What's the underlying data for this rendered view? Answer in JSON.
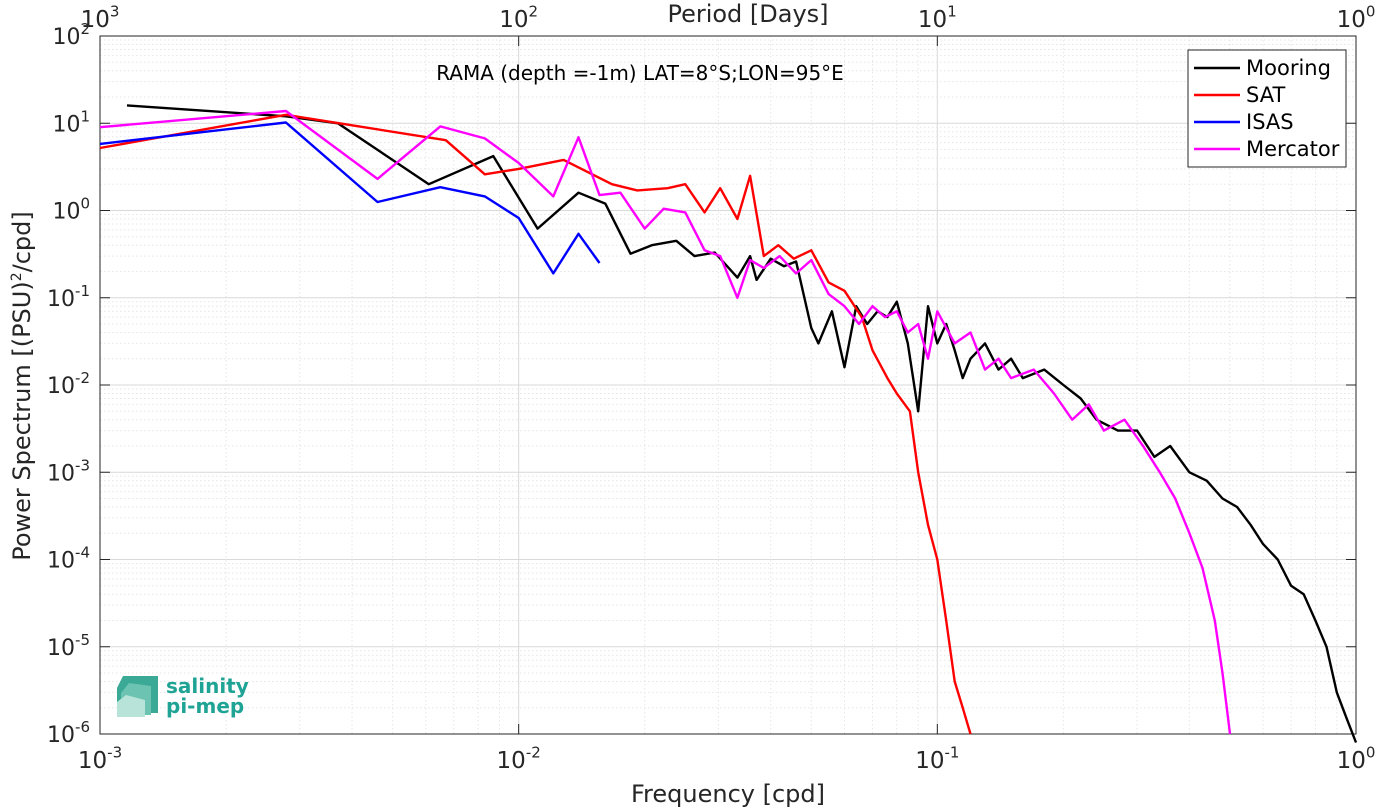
{
  "chart_data": {
    "type": "line",
    "xscale": "log",
    "yscale": "log",
    "xlim": [
      0.001,
      1
    ],
    "ylim": [
      1e-06,
      100
    ],
    "grid": true,
    "legend_position": "top-right",
    "xlabel": "Frequency [cpd]",
    "ylabel": "Power Spectrum [(PSU)²/cpd]",
    "top_axis_label": "Period [Days]",
    "annotation": "RAMA (depth =-1m) LAT=8°S;LON=95°E",
    "logo": [
      "salinity",
      "pi-mep"
    ],
    "x_ticks": [
      {
        "value": 0.001,
        "base": "10",
        "exp": "-3"
      },
      {
        "value": 0.01,
        "base": "10",
        "exp": "-2"
      },
      {
        "value": 0.1,
        "base": "10",
        "exp": "-1"
      },
      {
        "value": 1,
        "base": "10",
        "exp": "0"
      }
    ],
    "top_ticks": [
      {
        "value": 0.001,
        "base": "10",
        "exp": "3"
      },
      {
        "value": 0.01,
        "base": "10",
        "exp": "2"
      },
      {
        "value": 0.1,
        "base": "10",
        "exp": "1"
      },
      {
        "value": 1,
        "base": "10",
        "exp": "0"
      }
    ],
    "y_ticks": [
      {
        "value": 1e-06,
        "base": "10",
        "exp": "-6"
      },
      {
        "value": 1e-05,
        "base": "10",
        "exp": "-5"
      },
      {
        "value": 0.0001,
        "base": "10",
        "exp": "-4"
      },
      {
        "value": 0.001,
        "base": "10",
        "exp": "-3"
      },
      {
        "value": 0.01,
        "base": "10",
        "exp": "-2"
      },
      {
        "value": 0.1,
        "base": "10",
        "exp": "-1"
      },
      {
        "value": 1,
        "base": "10",
        "exp": "0"
      },
      {
        "value": 10,
        "base": "10",
        "exp": "1"
      },
      {
        "value": 100,
        "base": "10",
        "exp": "2"
      }
    ],
    "series": [
      {
        "name": "Mooring",
        "color": "#000000",
        "x": [
          0.00116,
          0.00278,
          0.0037,
          0.0061,
          0.0087,
          0.0111,
          0.0139,
          0.0161,
          0.0185,
          0.0208,
          0.0238,
          0.0263,
          0.0294,
          0.0333,
          0.0357,
          0.037,
          0.04,
          0.043,
          0.046,
          0.05,
          0.052,
          0.056,
          0.06,
          0.064,
          0.068,
          0.072,
          0.076,
          0.08,
          0.085,
          0.09,
          0.095,
          0.1,
          0.105,
          0.11,
          0.115,
          0.12,
          0.13,
          0.14,
          0.15,
          0.16,
          0.18,
          0.2,
          0.22,
          0.24,
          0.27,
          0.3,
          0.33,
          0.36,
          0.4,
          0.44,
          0.48,
          0.52,
          0.56,
          0.6,
          0.65,
          0.7,
          0.75,
          0.8,
          0.85,
          0.9,
          0.95,
          1.0
        ],
        "y": [
          16,
          12,
          10,
          2.0,
          4.2,
          0.62,
          1.6,
          1.2,
          0.32,
          0.4,
          0.45,
          0.3,
          0.33,
          0.17,
          0.3,
          0.16,
          0.28,
          0.23,
          0.26,
          0.045,
          0.03,
          0.07,
          0.016,
          0.08,
          0.05,
          0.07,
          0.06,
          0.09,
          0.03,
          0.005,
          0.08,
          0.03,
          0.05,
          0.025,
          0.012,
          0.02,
          0.03,
          0.015,
          0.02,
          0.012,
          0.015,
          0.01,
          0.007,
          0.004,
          0.003,
          0.003,
          0.0015,
          0.002,
          0.001,
          0.0008,
          0.0005,
          0.0004,
          0.00025,
          0.00015,
          0.0001,
          5e-05,
          4e-05,
          2e-05,
          1e-05,
          3e-06,
          1.5e-06,
          8e-07
        ]
      },
      {
        "name": "SAT",
        "color": "#ff0000",
        "x": [
          0.001,
          0.00278,
          0.0067,
          0.0083,
          0.01,
          0.0128,
          0.0167,
          0.0192,
          0.0227,
          0.025,
          0.0278,
          0.0303,
          0.0333,
          0.0357,
          0.0385,
          0.0417,
          0.0454,
          0.05,
          0.055,
          0.06,
          0.066,
          0.07,
          0.076,
          0.08,
          0.086,
          0.09,
          0.095,
          0.1,
          0.105,
          0.11,
          0.115,
          0.12
        ],
        "y": [
          5.2,
          12.5,
          6.4,
          2.6,
          3.0,
          3.8,
          2.0,
          1.7,
          1.8,
          2.0,
          0.95,
          1.8,
          0.8,
          2.5,
          0.3,
          0.4,
          0.28,
          0.35,
          0.15,
          0.12,
          0.06,
          0.025,
          0.012,
          0.008,
          0.005,
          0.001,
          0.00025,
          0.0001,
          2e-05,
          4e-06,
          2e-06,
          1e-06
        ]
      },
      {
        "name": "ISAS",
        "color": "#0000ff",
        "x": [
          0.001,
          0.00278,
          0.0046,
          0.0065,
          0.0083,
          0.01,
          0.0121,
          0.0139,
          0.0156
        ],
        "y": [
          5.8,
          10.2,
          1.25,
          1.85,
          1.45,
          0.82,
          0.19,
          0.54,
          0.25
        ]
      },
      {
        "name": "Mercator",
        "color": "#ff00ff",
        "x": [
          0.001,
          0.00278,
          0.0046,
          0.0065,
          0.0083,
          0.01,
          0.0121,
          0.0139,
          0.0156,
          0.0175,
          0.02,
          0.0222,
          0.025,
          0.0278,
          0.0303,
          0.0333,
          0.0357,
          0.0385,
          0.042,
          0.046,
          0.05,
          0.055,
          0.06,
          0.065,
          0.07,
          0.075,
          0.08,
          0.085,
          0.09,
          0.095,
          0.1,
          0.11,
          0.12,
          0.13,
          0.14,
          0.15,
          0.17,
          0.19,
          0.21,
          0.23,
          0.25,
          0.28,
          0.31,
          0.34,
          0.37,
          0.4,
          0.43,
          0.46,
          0.48,
          0.5
        ],
        "y": [
          9,
          13.8,
          2.3,
          9.2,
          6.7,
          3.5,
          1.45,
          6.9,
          1.5,
          1.6,
          0.62,
          1.05,
          0.95,
          0.35,
          0.3,
          0.1,
          0.27,
          0.22,
          0.3,
          0.19,
          0.27,
          0.11,
          0.08,
          0.05,
          0.08,
          0.06,
          0.07,
          0.04,
          0.05,
          0.02,
          0.07,
          0.03,
          0.04,
          0.015,
          0.02,
          0.012,
          0.015,
          0.008,
          0.004,
          0.006,
          0.003,
          0.004,
          0.002,
          0.001,
          0.0005,
          0.0002,
          8e-05,
          2e-05,
          5e-06,
          1e-06
        ]
      }
    ]
  }
}
